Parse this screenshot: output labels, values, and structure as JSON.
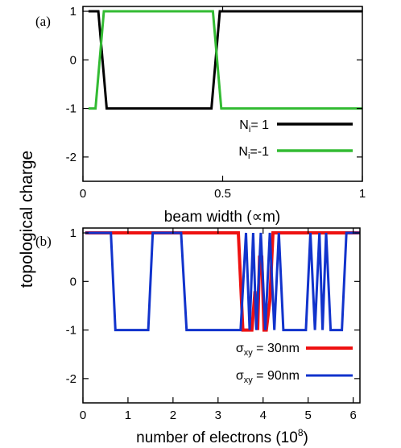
{
  "ylabel": "topological charge",
  "chart_data": [
    {
      "type": "line",
      "panel_label": "(a)",
      "xlabel": "beam width (∝m)",
      "xlim": [
        0,
        1
      ],
      "ylim": [
        -2.5,
        1.1
      ],
      "xticks": [
        0,
        0.5,
        1
      ],
      "xtick_labels": [
        "0",
        "0.5",
        "1"
      ],
      "yticks": [
        1,
        0,
        -1,
        -2
      ],
      "ytick_labels": [
        "1",
        "0",
        "-1",
        "-2"
      ],
      "grid": false,
      "legend_position": "lower-right",
      "series": [
        {
          "name": "N_i= 1",
          "label_main": "N",
          "label_sub": "i",
          "label_tail": "= 1",
          "color": "#000000",
          "x": [
            0.02,
            0.055,
            0.085,
            0.46,
            0.49,
            1.0
          ],
          "y": [
            1,
            1,
            -1,
            -1,
            1,
            1
          ]
        },
        {
          "name": "N_i=-1",
          "label_main": "N",
          "label_sub": "i",
          "label_tail": "=-1",
          "color": "#33bb33",
          "x": [
            0.02,
            0.045,
            0.075,
            0.465,
            0.495,
            1.0
          ],
          "y": [
            -1,
            -1,
            1,
            1,
            -1,
            -1
          ]
        }
      ]
    },
    {
      "type": "line",
      "panel_label": "(b)",
      "xlabel": "number of electrons  (10^8)",
      "xlabel_main": "number of electrons  (10",
      "xlabel_sup": "8",
      "xlabel_tail": ")",
      "xlim": [
        0,
        6.15
      ],
      "ylim": [
        -2.5,
        1.1
      ],
      "xticks": [
        0,
        1,
        2,
        3,
        4,
        5,
        6
      ],
      "xtick_labels": [
        "0",
        "1",
        "2",
        "3",
        "4",
        "5",
        "6"
      ],
      "yticks": [
        1,
        0,
        -1,
        -2
      ],
      "ytick_labels": [
        "1",
        "0",
        "-1",
        "-2"
      ],
      "grid": false,
      "legend_position": "lower-right",
      "series": [
        {
          "name": "σ_xy = 30nm",
          "label_main": "σ",
          "label_sub": "xy",
          "label_tail": " = 30nm",
          "color": "#ee1111",
          "x": [
            0.05,
            3.45,
            3.55,
            3.75,
            3.82,
            3.88,
            3.92,
            3.97,
            4.02,
            4.07,
            4.15,
            4.22,
            6.15
          ],
          "y": [
            1,
            1,
            -1,
            -1,
            -0.2,
            -1,
            0.5,
            0.5,
            -1,
            -1,
            -0.4,
            1,
            1
          ]
        },
        {
          "name": "σ_xy = 90nm",
          "label_main": "σ",
          "label_sub": "xy",
          "label_tail": " = 90nm",
          "color": "#1133cc",
          "x": [
            0.05,
            0.62,
            0.72,
            1.45,
            1.55,
            2.18,
            2.3,
            3.5,
            3.62,
            3.7,
            3.78,
            3.85,
            3.95,
            4.05,
            4.15,
            4.25,
            4.35,
            4.45,
            4.55,
            4.95,
            5.05,
            5.15,
            5.25,
            5.32,
            5.4,
            5.5,
            5.6,
            5.75,
            5.85,
            6.15
          ],
          "y": [
            1,
            1,
            -1,
            -1,
            1,
            1,
            -1,
            -1,
            1,
            -1,
            1,
            -1,
            1,
            -1,
            1,
            -1,
            1,
            -1,
            -1,
            -1,
            1,
            -1,
            1,
            -1,
            1,
            -1,
            -1,
            -1,
            1,
            1
          ]
        }
      ]
    }
  ]
}
